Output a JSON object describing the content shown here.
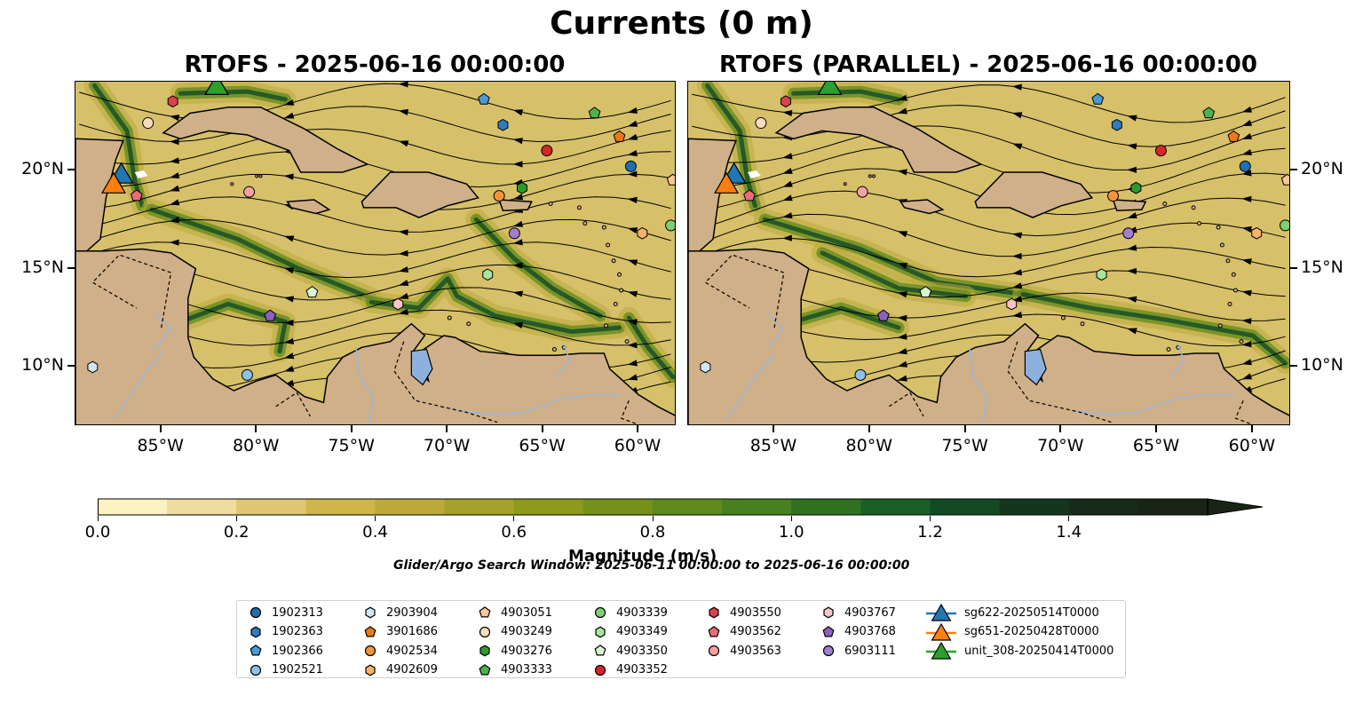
{
  "title": "Currents (0 m)",
  "panels": [
    {
      "title": "RTOFS - 2025-06-16 00:00:00"
    },
    {
      "title": "RTOFS (PARALLEL) - 2025-06-16 00:00:00"
    }
  ],
  "map": {
    "lon_range": [
      -89.5,
      -58.0
    ],
    "lat_range": [
      7.0,
      24.5
    ],
    "x_tick_labels": [
      "85°W",
      "80°W",
      "75°W",
      "70°W",
      "65°W",
      "60°W"
    ],
    "y_tick_labels": [
      "20°N",
      "15°N",
      "10°N"
    ],
    "land_color": "#d0b088",
    "coastline_color": "#000000",
    "lake_color": "#8db1dd"
  },
  "colorbar": {
    "label": "Magnitude (m/s)",
    "tick_labels": [
      "0.0",
      "0.2",
      "0.4",
      "0.6",
      "0.8",
      "1.0",
      "1.2",
      "1.4"
    ],
    "range": [
      0.0,
      1.6
    ],
    "extend": "max",
    "colors": [
      "#fbf4c1",
      "#eedd9e",
      "#e0c774",
      "#d0b54a",
      "#bca93a",
      "#a5a12a",
      "#8d9a1c",
      "#76911a",
      "#5f8a1c",
      "#47801f",
      "#2f7021",
      "#1a5f26",
      "#124a24",
      "#13361d",
      "#182a18",
      "#1a2414"
    ]
  },
  "search_window": "Glider/Argo Search Window: 2025-06-11 00:00:00 to 2025-06-16 00:00:00",
  "legend": {
    "columns": [
      [
        {
          "label": "1902313",
          "marker": "circle",
          "color": "#1f6fb4"
        },
        {
          "label": "1902363",
          "marker": "hexagon",
          "color": "#2e7bbd"
        },
        {
          "label": "1902366",
          "marker": "pentagon",
          "color": "#4a9ad6"
        },
        {
          "label": "1902521",
          "marker": "circle",
          "color": "#8dc1e8"
        }
      ],
      [
        {
          "label": "2903904",
          "marker": "hexagon",
          "color": "#cfe6f7"
        },
        {
          "label": "3901686",
          "marker": "pentagon",
          "color": "#f07a11"
        },
        {
          "label": "4902534",
          "marker": "circle",
          "color": "#f4943a"
        },
        {
          "label": "4902609",
          "marker": "hexagon",
          "color": "#f8b265"
        }
      ],
      [
        {
          "label": "4903051",
          "marker": "pentagon",
          "color": "#f9c79a"
        },
        {
          "label": "4903249",
          "marker": "circle",
          "color": "#fbdcbc"
        },
        {
          "label": "4903276",
          "marker": "hexagon",
          "color": "#2d9a2d"
        },
        {
          "label": "4903333",
          "marker": "pentagon",
          "color": "#4cb34c"
        }
      ],
      [
        {
          "label": "4903339",
          "marker": "circle",
          "color": "#7fcf72"
        },
        {
          "label": "4903349",
          "marker": "hexagon",
          "color": "#a6e4a0"
        },
        {
          "label": "4903350",
          "marker": "pentagon",
          "color": "#d9f6d3"
        },
        {
          "label": "4903352",
          "marker": "circle",
          "color": "#d62728"
        }
      ],
      [
        {
          "label": "4903550",
          "marker": "hexagon",
          "color": "#d9434a"
        },
        {
          "label": "4903562",
          "marker": "pentagon",
          "color": "#ec6b78"
        },
        {
          "label": "4903563",
          "marker": "circle",
          "color": "#f7a0a4"
        }
      ],
      [
        {
          "label": "4903767",
          "marker": "hexagon",
          "color": "#fbc4c8"
        },
        {
          "label": "4903768",
          "marker": "pentagon",
          "color": "#8e5fc0"
        },
        {
          "label": "6903111",
          "marker": "circle",
          "color": "#a37ed0"
        }
      ],
      [
        {
          "label": "sg622-20250514T0000",
          "marker": "triangle",
          "color": "#1f77b4"
        },
        {
          "label": "sg651-20250428T0000",
          "marker": "triangle",
          "color": "#ff7f0e"
        },
        {
          "label": "unit_308-20250414T0000",
          "marker": "triangle",
          "color": "#2ca02c"
        }
      ]
    ]
  },
  "floats": [
    {
      "id": "1902313",
      "lon": -60.4,
      "lat": 20.2
    },
    {
      "id": "1902363",
      "lon": -67.1,
      "lat": 22.3
    },
    {
      "id": "1902366",
      "lon": -68.1,
      "lat": 23.6
    },
    {
      "id": "1902521",
      "lon": -80.5,
      "lat": 9.6
    },
    {
      "id": "2903904",
      "lon": -88.6,
      "lat": 10.0
    },
    {
      "id": "3901686",
      "lon": -61.0,
      "lat": 21.7
    },
    {
      "id": "4902534",
      "lon": -67.3,
      "lat": 18.7
    },
    {
      "id": "4902609",
      "lon": -59.8,
      "lat": 16.8
    },
    {
      "id": "4903051",
      "lon": -58.2,
      "lat": 19.5
    },
    {
      "id": "4903249",
      "lon": -85.7,
      "lat": 22.4
    },
    {
      "id": "4903276",
      "lon": -66.1,
      "lat": 19.1
    },
    {
      "id": "4903333",
      "lon": -62.3,
      "lat": 22.9
    },
    {
      "id": "4903339",
      "lon": -58.3,
      "lat": 17.2
    },
    {
      "id": "4903349",
      "lon": -67.9,
      "lat": 14.7
    },
    {
      "id": "4903350",
      "lon": -77.1,
      "lat": 13.8
    },
    {
      "id": "4903352",
      "lon": -64.8,
      "lat": 21.0
    },
    {
      "id": "4903550",
      "lon": -84.4,
      "lat": 23.5
    },
    {
      "id": "4903562",
      "lon": -86.3,
      "lat": 18.7
    },
    {
      "id": "4903563",
      "lon": -80.4,
      "lat": 18.9
    },
    {
      "id": "4903767",
      "lon": -72.6,
      "lat": 13.2
    },
    {
      "id": "4903768",
      "lon": -79.3,
      "lat": 12.6
    },
    {
      "id": "6903111",
      "lon": -66.5,
      "lat": 16.8
    }
  ],
  "gliders": [
    {
      "id": "sg622-20250514T0000",
      "lon": -87.1,
      "lat": 19.8
    },
    {
      "id": "sg651-20250428T0000",
      "lon": -87.5,
      "lat": 19.3
    },
    {
      "id": "unit_308-20250414T0000",
      "lon": -82.1,
      "lat": 24.3
    }
  ]
}
